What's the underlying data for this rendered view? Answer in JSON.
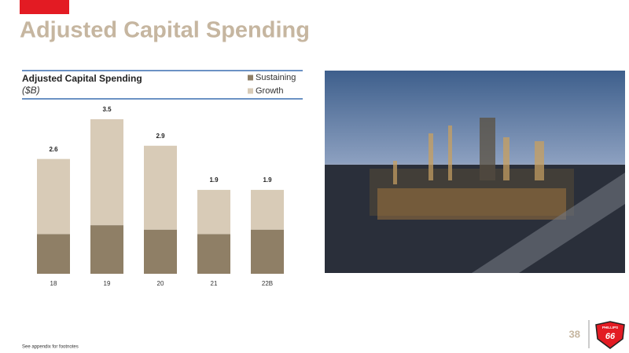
{
  "slide_title": "Adjusted Capital Spending",
  "page_number": "38",
  "footnote": "See appendix for footnotes",
  "logo": {
    "top": "PHILLIPS",
    "bottom": "66"
  },
  "chart_data": {
    "type": "bar",
    "stacked": true,
    "title": "Adjusted Capital Spending",
    "subtitle": "($B)",
    "categories": [
      "18",
      "19",
      "20",
      "21",
      "22B"
    ],
    "series": [
      {
        "name": "Sustaining",
        "color": "#8f7f66",
        "values": [
          0.9,
          1.1,
          1.0,
          0.9,
          1.0
        ]
      },
      {
        "name": "Growth",
        "color": "#d8cbb7",
        "values": [
          1.7,
          2.4,
          1.9,
          1.0,
          0.9
        ]
      }
    ],
    "totals": [
      2.6,
      3.5,
      2.9,
      1.9,
      1.9
    ]
  }
}
